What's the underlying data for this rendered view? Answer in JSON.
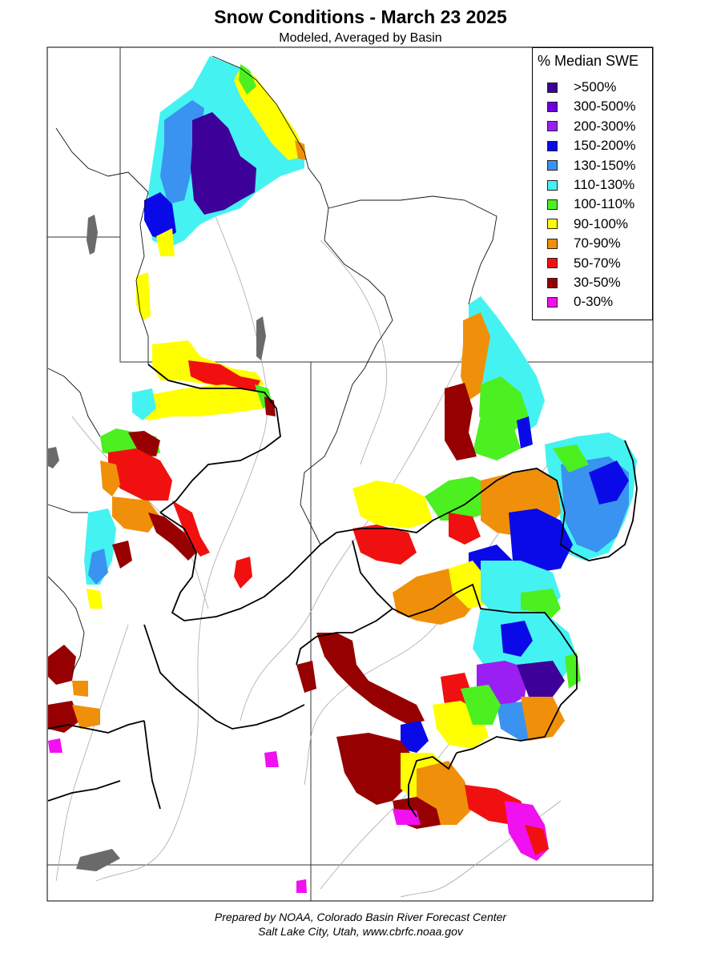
{
  "header": {
    "title": "Snow Conditions - March 23 2025",
    "subtitle": "Modeled, Averaged by Basin"
  },
  "legend": {
    "title": "% Median SWE",
    "items": [
      {
        "label": ">500%",
        "color": "#3d0099"
      },
      {
        "label": "300-500%",
        "color": "#6a00e0"
      },
      {
        "label": "200-300%",
        "color": "#9a1ff2"
      },
      {
        "label": "150-200%",
        "color": "#0a0ae8"
      },
      {
        "label": "130-150%",
        "color": "#3a93f0"
      },
      {
        "label": "110-130%",
        "color": "#45f2f2"
      },
      {
        "label": "100-110%",
        "color": "#4cf020"
      },
      {
        "label": "90-100%",
        "color": "#ffff00"
      },
      {
        "label": "70-90%",
        "color": "#f0900a"
      },
      {
        "label": "50-70%",
        "color": "#f01010"
      },
      {
        "label": "30-50%",
        "color": "#960000"
      },
      {
        "label": "0-30%",
        "color": "#f010f0"
      }
    ]
  },
  "footer": {
    "line1": "Prepared by NOAA, Colorado Basin River Forecast Center",
    "line2": "Salt Lake City, Utah, www.cbrfc.noaa.gov"
  }
}
